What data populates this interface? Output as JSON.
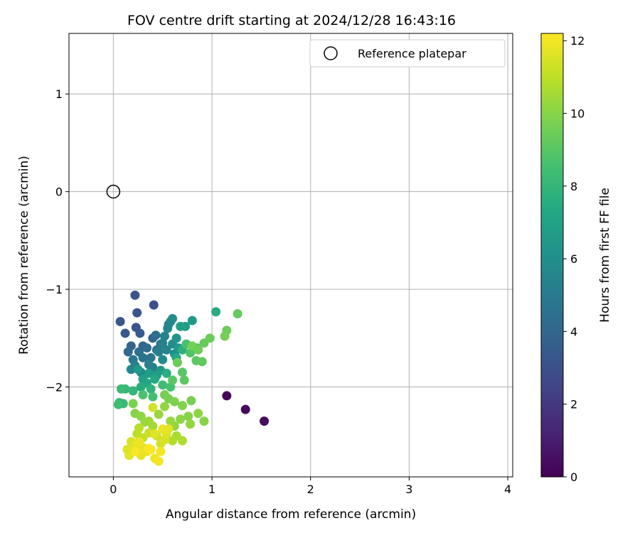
{
  "chart_data": {
    "type": "scatter",
    "title": "FOV centre drift starting at 2024/12/28 16:43:16",
    "xlabel": "Angular distance from reference (arcmin)",
    "ylabel": "Rotation from reference (arcmin)",
    "xlim": [
      -0.45,
      4.05
    ],
    "ylim": [
      -2.92,
      1.62
    ],
    "xticks": [
      "0",
      "1",
      "2",
      "3",
      "4"
    ],
    "yticks": [
      "−2",
      "−1",
      "0",
      "1"
    ],
    "grid": true,
    "legend": {
      "placement": "top-right",
      "entries": [
        "Reference platepar"
      ]
    },
    "reference_point": {
      "x": 0,
      "y": 0
    },
    "colorbar": {
      "label": "Hours from first FF file",
      "range": [
        0,
        12.2
      ],
      "ticks": [
        "0",
        "2",
        "4",
        "6",
        "8",
        "10",
        "12"
      ],
      "colormap": "viridis"
    },
    "series": [
      {
        "points": [
          [
            1.15,
            -2.09,
            0.2
          ],
          [
            1.34,
            -2.23,
            0.3
          ],
          [
            1.53,
            -2.35,
            0.4
          ],
          [
            0.22,
            -1.06,
            3.1
          ],
          [
            0.41,
            -1.16,
            3.0
          ],
          [
            0.24,
            -1.24,
            3.2
          ],
          [
            0.07,
            -1.33,
            3.3
          ],
          [
            0.12,
            -1.45,
            3.4
          ],
          [
            0.23,
            -1.39,
            3.2
          ],
          [
            0.27,
            -1.45,
            3.5
          ],
          [
            0.3,
            -1.58,
            3.9
          ],
          [
            0.18,
            -1.58,
            4.0
          ],
          [
            0.15,
            -1.64,
            4.2
          ],
          [
            0.4,
            -1.5,
            4.0
          ],
          [
            0.34,
            -1.6,
            4.3
          ],
          [
            0.26,
            -1.64,
            4.4
          ],
          [
            0.44,
            -1.62,
            4.5
          ],
          [
            0.48,
            -1.56,
            4.6
          ],
          [
            0.43,
            -1.47,
            4.4
          ],
          [
            0.38,
            -1.7,
            4.8
          ],
          [
            0.2,
            -1.72,
            4.9
          ],
          [
            0.3,
            -1.7,
            4.7
          ],
          [
            0.52,
            -1.48,
            5.4
          ],
          [
            0.55,
            -1.4,
            5.6
          ],
          [
            0.58,
            -1.33,
            5.7
          ],
          [
            0.6,
            -1.3,
            5.8
          ],
          [
            0.56,
            -1.36,
            5.5
          ],
          [
            0.5,
            -1.55,
            5.3
          ],
          [
            0.46,
            -1.64,
            5.2
          ],
          [
            0.36,
            -1.77,
            5.2
          ],
          [
            0.22,
            -1.78,
            5.3
          ],
          [
            0.18,
            -1.82,
            5.5
          ],
          [
            0.28,
            -1.85,
            5.6
          ],
          [
            0.4,
            -1.8,
            5.4
          ],
          [
            0.54,
            -1.62,
            5.5
          ],
          [
            0.6,
            -1.56,
            5.9
          ],
          [
            0.62,
            -1.66,
            6.0
          ],
          [
            0.5,
            -1.72,
            5.8
          ],
          [
            0.8,
            -1.32,
            6.6
          ],
          [
            0.73,
            -1.38,
            6.8
          ],
          [
            0.68,
            -1.38,
            6.9
          ],
          [
            0.64,
            -1.5,
            6.3
          ],
          [
            0.66,
            -1.6,
            6.4
          ],
          [
            0.48,
            -1.83,
            6.5
          ],
          [
            0.36,
            -1.86,
            6.7
          ],
          [
            0.44,
            -1.88,
            6.8
          ],
          [
            0.3,
            -1.92,
            6.9
          ],
          [
            0.25,
            -1.82,
            6.6
          ],
          [
            1.04,
            -1.23,
            7.5
          ],
          [
            0.34,
            -1.96,
            7.2
          ],
          [
            0.42,
            -1.92,
            7.4
          ],
          [
            0.54,
            -1.86,
            7.6
          ],
          [
            0.64,
            -1.7,
            7.3
          ],
          [
            0.7,
            -1.62,
            7.7
          ],
          [
            0.28,
            -2.0,
            7.5
          ],
          [
            0.38,
            -2.02,
            7.8
          ],
          [
            0.2,
            -2.04,
            8.0
          ],
          [
            0.12,
            -2.02,
            8.1
          ],
          [
            0.08,
            -2.02,
            8.2
          ],
          [
            0.06,
            -2.16,
            8.3
          ],
          [
            0.1,
            -2.17,
            8.1
          ],
          [
            0.05,
            -2.18,
            8.4
          ],
          [
            0.5,
            -1.98,
            8.4
          ],
          [
            0.58,
            -2.0,
            8.6
          ],
          [
            0.3,
            -2.08,
            8.7
          ],
          [
            0.4,
            -2.1,
            8.5
          ],
          [
            0.74,
            -1.56,
            8.6
          ],
          [
            0.78,
            -1.65,
            8.8
          ],
          [
            0.85,
            -1.6,
            8.9
          ],
          [
            0.84,
            -1.73,
            9.1
          ],
          [
            0.9,
            -1.74,
            9.2
          ],
          [
            0.7,
            -1.85,
            9.0
          ],
          [
            0.72,
            -1.93,
            9.1
          ],
          [
            0.6,
            -1.93,
            9.0
          ],
          [
            1.26,
            -1.25,
            9.3
          ],
          [
            1.15,
            -1.42,
            9.5
          ],
          [
            1.13,
            -1.48,
            9.6
          ],
          [
            0.98,
            -1.5,
            9.4
          ],
          [
            0.92,
            -1.55,
            9.3
          ],
          [
            0.8,
            -1.58,
            9.6
          ],
          [
            0.86,
            -1.62,
            9.5
          ],
          [
            0.65,
            -1.75,
            9.4
          ],
          [
            0.52,
            -2.08,
            9.6
          ],
          [
            0.56,
            -2.12,
            9.7
          ],
          [
            0.62,
            -2.15,
            9.8
          ],
          [
            0.7,
            -2.19,
            9.9
          ],
          [
            0.79,
            -2.14,
            9.7
          ],
          [
            0.76,
            -2.3,
            10.0
          ],
          [
            0.86,
            -2.27,
            10.1
          ],
          [
            0.92,
            -2.35,
            10.0
          ],
          [
            0.78,
            -2.38,
            10.2
          ],
          [
            0.68,
            -2.33,
            10.1
          ],
          [
            0.62,
            -2.4,
            10.2
          ],
          [
            0.58,
            -2.35,
            10.3
          ],
          [
            0.2,
            -2.17,
            9.8
          ],
          [
            0.22,
            -2.27,
            10.0
          ],
          [
            0.28,
            -2.3,
            10.1
          ],
          [
            0.32,
            -2.36,
            10.3
          ],
          [
            0.36,
            -2.35,
            10.4
          ],
          [
            0.4,
            -2.4,
            10.5
          ],
          [
            0.46,
            -2.28,
            10.3
          ],
          [
            0.52,
            -2.2,
            10.2
          ],
          [
            0.64,
            -2.5,
            10.6
          ],
          [
            0.7,
            -2.55,
            10.7
          ],
          [
            0.6,
            -2.55,
            10.8
          ],
          [
            0.26,
            -2.42,
            10.9
          ],
          [
            0.24,
            -2.48,
            11.0
          ],
          [
            0.3,
            -2.52,
            11.1
          ],
          [
            0.36,
            -2.47,
            11.2
          ],
          [
            0.44,
            -2.5,
            11.3
          ],
          [
            0.48,
            -2.58,
            11.4
          ],
          [
            0.52,
            -2.54,
            11.5
          ],
          [
            0.54,
            -2.48,
            11.6
          ],
          [
            0.4,
            -2.21,
            11.4
          ],
          [
            0.42,
            -2.48,
            11.6
          ],
          [
            0.56,
            -2.43,
            11.7
          ],
          [
            0.5,
            -2.43,
            11.8
          ],
          [
            0.18,
            -2.56,
            11.5
          ],
          [
            0.2,
            -2.62,
            11.6
          ],
          [
            0.24,
            -2.6,
            11.7
          ],
          [
            0.3,
            -2.62,
            11.8
          ],
          [
            0.34,
            -2.66,
            11.9
          ],
          [
            0.28,
            -2.7,
            11.8
          ],
          [
            0.16,
            -2.7,
            11.7
          ],
          [
            0.48,
            -2.66,
            12.0
          ],
          [
            0.42,
            -2.73,
            11.9
          ],
          [
            0.46,
            -2.76,
            12.0
          ],
          [
            0.38,
            -2.64,
            12.1
          ],
          [
            0.22,
            -2.66,
            12.1
          ],
          [
            0.36,
            -2.63,
            12.2
          ],
          [
            0.26,
            -2.56,
            11.9
          ],
          [
            0.14,
            -2.64,
            11.6
          ]
        ]
      }
    ]
  }
}
